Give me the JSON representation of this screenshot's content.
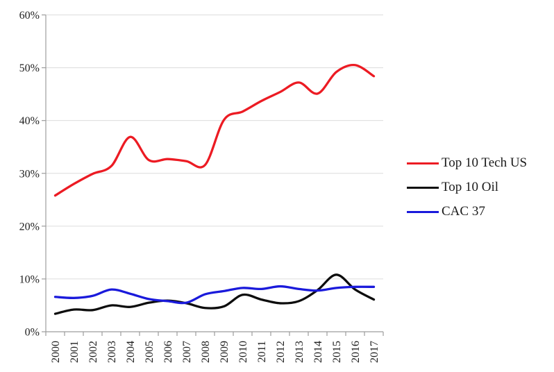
{
  "page": {
    "background_color": "#ffffff",
    "title": ""
  },
  "chart_data": {
    "type": "line",
    "title": "",
    "xlabel": "",
    "ylabel": "",
    "x_labels": [
      "2000",
      "2001",
      "2002",
      "2003",
      "2004",
      "2005",
      "2006",
      "2007",
      "2008",
      "2009",
      "2010",
      "2011",
      "2012",
      "2013",
      "2014",
      "2015",
      "2016",
      "2017"
    ],
    "series": [
      {
        "name": "Top 10 Tech US",
        "color": "#ec1b23",
        "values": [
          25.8,
          28.0,
          29.9,
          31.4,
          36.9,
          32.5,
          32.7,
          32.3,
          31.6,
          40.1,
          41.7,
          43.7,
          45.4,
          47.2,
          45.1,
          49.2,
          50.5,
          48.4
        ]
      },
      {
        "name": "Top 10 Oil",
        "color": "#0d0d0d",
        "values": [
          3.4,
          4.2,
          4.1,
          5.0,
          4.7,
          5.5,
          5.9,
          5.4,
          4.5,
          4.8,
          7.0,
          6.1,
          5.4,
          5.8,
          7.9,
          10.8,
          8.0,
          6.1
        ]
      },
      {
        "name": "CAC 37",
        "color": "#1a1adb",
        "values": [
          6.6,
          6.4,
          6.8,
          8.0,
          7.2,
          6.2,
          5.8,
          5.5,
          7.1,
          7.7,
          8.3,
          8.1,
          8.6,
          8.1,
          7.8,
          8.3,
          8.5,
          8.5
        ]
      }
    ],
    "ylim": [
      0,
      60
    ],
    "ytick_labels": [
      "0%",
      "10%",
      "20%",
      "30%",
      "40%",
      "50%",
      "60%"
    ],
    "ytick_step": 10,
    "grid": true,
    "smooth": true,
    "legend_position": "right",
    "style": {
      "axis_color": "#9c9c9c",
      "grid_color": "#dcdcdc",
      "tick_label_color": "#1f1f1f",
      "line_width": 3.3,
      "tick_font_size": 16,
      "ytick_font_size": 15
    }
  }
}
